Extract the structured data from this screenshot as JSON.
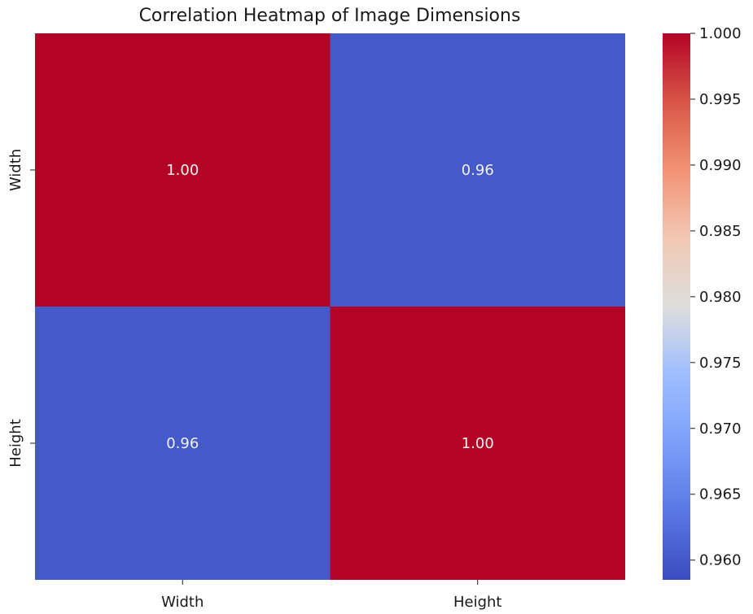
{
  "chart_data": {
    "type": "heatmap",
    "title": "Correlation Heatmap of Image Dimensions",
    "x_categories": [
      "Width",
      "Height"
    ],
    "y_categories": [
      "Width",
      "Height"
    ],
    "matrix": [
      [
        1.0,
        0.96
      ],
      [
        0.96,
        1.0
      ]
    ],
    "cell_labels": [
      [
        "1.00",
        "0.96"
      ],
      [
        "0.96",
        "1.00"
      ]
    ],
    "colormap": "coolwarm",
    "colorbar": {
      "min": 0.9585,
      "max": 1.0,
      "ticks": [
        0.96,
        0.965,
        0.97,
        0.975,
        0.98,
        0.985,
        0.99,
        0.995,
        1.0
      ],
      "tick_labels": [
        "0.960",
        "0.965",
        "0.970",
        "0.975",
        "0.980",
        "0.985",
        "0.990",
        "0.995",
        "1.000"
      ]
    }
  }
}
